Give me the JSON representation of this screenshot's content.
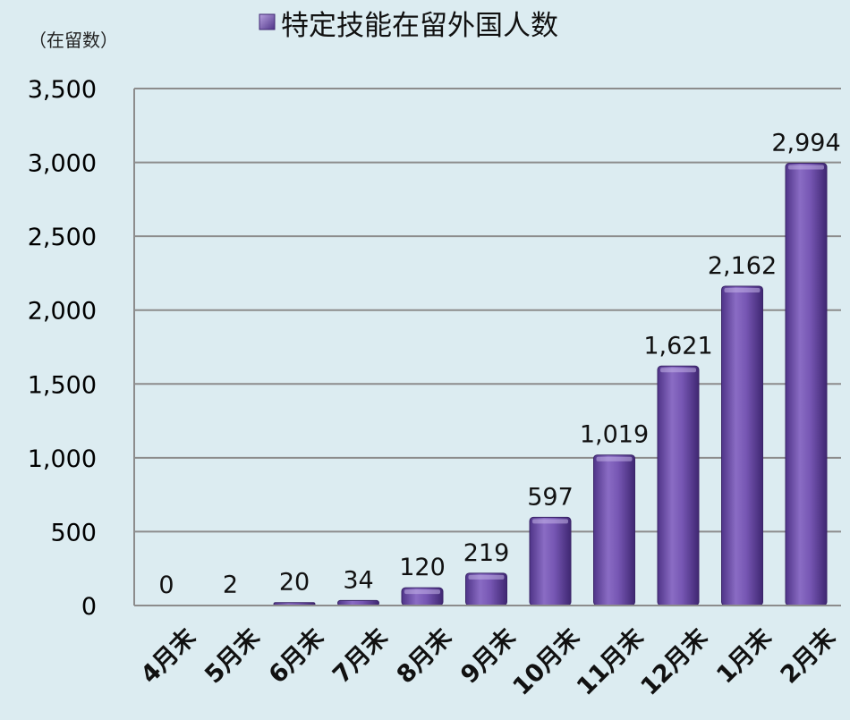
{
  "chart_data": {
    "type": "bar",
    "title": "特定技能在留外国人数",
    "unit_label": "（在留数）",
    "categories": [
      "4月末",
      "5月末",
      "6月末",
      "7月末",
      "8月末",
      "9月末",
      "10月末",
      "11月末",
      "12月末",
      "1月末",
      "2月末"
    ],
    "series": [
      {
        "name": "特定技能在留外国人数",
        "values": [
          0,
          2,
          20,
          34,
          120,
          219,
          597,
          1019,
          1621,
          2162,
          2994
        ],
        "value_labels": [
          "0",
          "2",
          "20",
          "34",
          "120",
          "219",
          "597",
          "1,019",
          "1,621",
          "2,162",
          "2,994"
        ]
      }
    ],
    "y_ticks": [
      "0",
      "500",
      "1,000",
      "1,500",
      "2,000",
      "2,500",
      "3,000",
      "3,500"
    ],
    "ylim": [
      0,
      3500
    ],
    "grid": true,
    "legend_position": "top"
  },
  "colors": {
    "background": "#dcecf1",
    "bar_light": "#a58ed4",
    "bar_mid": "#7b5bb5",
    "bar_dark": "#4a2f82",
    "gridline": "#8c8c8c"
  }
}
